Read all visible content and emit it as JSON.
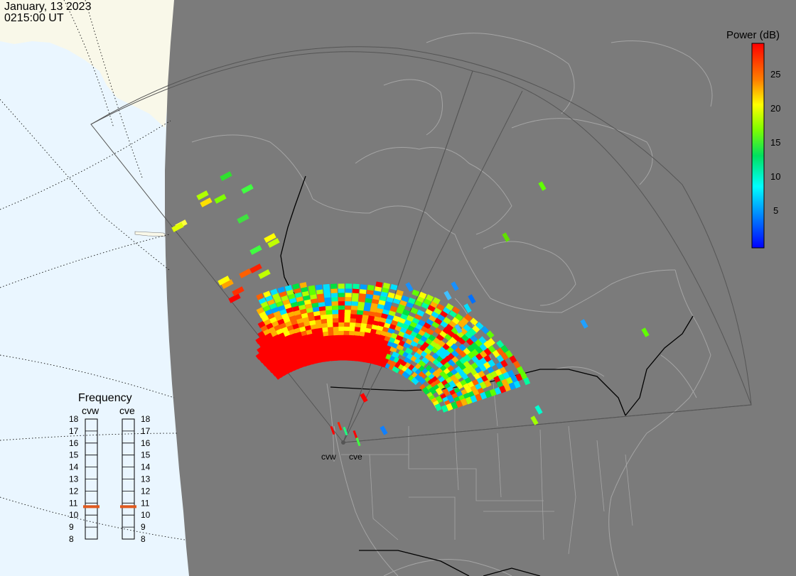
{
  "header": {
    "date": "January, 13 2023",
    "time": "0215:00 UT"
  },
  "colorbar": {
    "title": "Power (dB)",
    "ticks": [
      "25",
      "20",
      "15",
      "10",
      "5"
    ],
    "colormap": [
      "#0000ff",
      "#0080ff",
      "#00ffff",
      "#00ff80",
      "#80ff00",
      "#ffff00",
      "#ff8000",
      "#ff0000"
    ]
  },
  "frequency": {
    "title": "Frequency",
    "radar_labels": [
      "cvw",
      "cve"
    ],
    "scale": [
      "18",
      "17",
      "16",
      "15",
      "14",
      "13",
      "12",
      "11",
      "10",
      "9",
      "8"
    ],
    "indicator_color": "#e05a1e"
  },
  "radar_site": {
    "labels": [
      "cvw",
      "cve"
    ]
  },
  "colors": {
    "ocean": "#eaf6ff",
    "ice": "#f9f8e9",
    "night": "#7b7b7b",
    "coast": "#a8a8a8",
    "border": "#000000",
    "fov": "#555555"
  }
}
